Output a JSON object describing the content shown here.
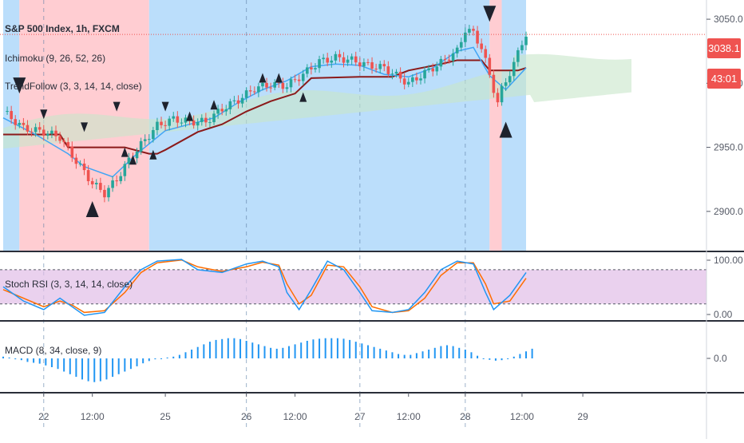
{
  "header": {
    "title": "S&P 500 Index, 1h, FXCM",
    "indicator_ichimoku": "Ichimoku (9, 26, 52, 26)",
    "indicator_trend": "TrendFollow (3, 3, 14, 14, close)",
    "indicator_stoch": "Stoch RSI (3, 3, 14, 14, close)",
    "indicator_macd": "MACD (8, 34, close, 9)"
  },
  "price_badge": {
    "price": "3038.1",
    "countdown": "43:01"
  },
  "colors": {
    "bull": "#26a69a",
    "bear": "#ef5350",
    "bg_bull": "#bbdefb",
    "bg_bear": "#ffcdd2",
    "conversion": "#42a5f5",
    "base": "#8b1a1a",
    "cloud": "#c8e6c9",
    "stoch_k": "#2196f3",
    "stoch_d": "#ff6d00",
    "stoch_band": "#e1bee7",
    "macd_hist": "#2196f3",
    "price_line": "#ef5350"
  },
  "chart_data": {
    "type": "candlestick",
    "symbol": "S&P 500 Index",
    "interval": "1h",
    "source": "FXCM",
    "x_ticks": [
      "22",
      "12:00",
      "25",
      "26",
      "12:00",
      "27",
      "12:00",
      "28",
      "12:00",
      "29"
    ],
    "y_ticks": [
      3050.0,
      3000.0,
      2950.0,
      2900.0
    ],
    "ylim": [
      2870,
      3065
    ],
    "last_price": 3038.1,
    "close_path": [
      [
        0,
        2978
      ],
      [
        5,
        2965
      ],
      [
        10,
        2962
      ],
      [
        14,
        2958
      ],
      [
        16,
        2948
      ],
      [
        19,
        2935
      ],
      [
        22,
        2922
      ],
      [
        25,
        2914
      ],
      [
        28,
        2925
      ],
      [
        31,
        2940
      ],
      [
        34,
        2952
      ],
      [
        38,
        2967
      ],
      [
        42,
        2972
      ],
      [
        46,
        2970
      ],
      [
        50,
        2970
      ],
      [
        54,
        2980
      ],
      [
        58,
        2987
      ],
      [
        62,
        2996
      ],
      [
        66,
        2999
      ],
      [
        70,
        2998
      ],
      [
        74,
        3007
      ],
      [
        78,
        3017
      ],
      [
        82,
        3020
      ],
      [
        86,
        3018
      ],
      [
        90,
        3014
      ],
      [
        94,
        3012
      ],
      [
        98,
        3004
      ],
      [
        100,
        3000
      ],
      [
        104,
        3008
      ],
      [
        108,
        3016
      ],
      [
        112,
        3025
      ],
      [
        114,
        3042
      ],
      [
        116,
        3039
      ],
      [
        118,
        3028
      ],
      [
        120,
        3006
      ],
      [
        122,
        2985
      ],
      [
        123,
        2995
      ],
      [
        126,
        3015
      ],
      [
        128,
        3032
      ],
      [
        129,
        3038.1
      ]
    ],
    "conversion_line": [
      [
        0,
        2973
      ],
      [
        8,
        2960
      ],
      [
        16,
        2945
      ],
      [
        20,
        2935
      ],
      [
        27,
        2927
      ],
      [
        33,
        2945
      ],
      [
        40,
        2963
      ],
      [
        46,
        2968
      ],
      [
        52,
        2973
      ],
      [
        58,
        2985
      ],
      [
        64,
        2995
      ],
      [
        70,
        3002
      ],
      [
        76,
        3013
      ],
      [
        82,
        3015
      ],
      [
        88,
        3014
      ],
      [
        94,
        3007
      ],
      [
        100,
        3005
      ],
      [
        106,
        3012
      ],
      [
        112,
        3025
      ],
      [
        116,
        3028
      ],
      [
        120,
        3006
      ],
      [
        124,
        2995
      ],
      [
        129,
        3012
      ]
    ],
    "base_line": [
      [
        0,
        2960
      ],
      [
        8,
        2960
      ],
      [
        14,
        2960
      ],
      [
        16,
        2950
      ],
      [
        24,
        2950
      ],
      [
        30,
        2950
      ],
      [
        36,
        2945
      ],
      [
        38,
        2945
      ],
      [
        40,
        2948
      ],
      [
        48,
        2962
      ],
      [
        54,
        2968
      ],
      [
        60,
        2978
      ],
      [
        66,
        2986
      ],
      [
        72,
        2992
      ],
      [
        76,
        3004
      ],
      [
        88,
        3005
      ],
      [
        96,
        3005
      ],
      [
        100,
        3010
      ],
      [
        108,
        3015
      ],
      [
        112,
        3018
      ],
      [
        118,
        3018
      ],
      [
        120,
        3010
      ],
      [
        127,
        3010
      ],
      [
        129,
        3012
      ]
    ],
    "bg_regions": [
      {
        "from": 0,
        "to": 4,
        "color": "bull"
      },
      {
        "from": 4,
        "to": 36,
        "color": "bear"
      },
      {
        "from": 36,
        "to": 120,
        "color": "bull"
      },
      {
        "from": 120,
        "to": 123,
        "color": "bear"
      },
      {
        "from": 123,
        "to": 129,
        "color": "bull"
      }
    ],
    "stoch_rsi": {
      "levels": [
        80,
        20
      ],
      "y_ticks": [
        100.0,
        0.0
      ],
      "k": [
        [
          0,
          50
        ],
        [
          5,
          25
        ],
        [
          10,
          10
        ],
        [
          14,
          30
        ],
        [
          17,
          15
        ],
        [
          20,
          0
        ],
        [
          25,
          5
        ],
        [
          30,
          50
        ],
        [
          34,
          80
        ],
        [
          38,
          95
        ],
        [
          44,
          98
        ],
        [
          48,
          80
        ],
        [
          54,
          75
        ],
        [
          60,
          90
        ],
        [
          64,
          95
        ],
        [
          68,
          85
        ],
        [
          70,
          40
        ],
        [
          73,
          10
        ],
        [
          76,
          45
        ],
        [
          80,
          95
        ],
        [
          84,
          80
        ],
        [
          88,
          40
        ],
        [
          91,
          8
        ],
        [
          96,
          5
        ],
        [
          100,
          10
        ],
        [
          104,
          40
        ],
        [
          108,
          80
        ],
        [
          112,
          95
        ],
        [
          116,
          90
        ],
        [
          119,
          40
        ],
        [
          121,
          10
        ],
        [
          125,
          35
        ],
        [
          129,
          75
        ]
      ],
      "d": [
        [
          0,
          45
        ],
        [
          5,
          30
        ],
        [
          10,
          15
        ],
        [
          14,
          25
        ],
        [
          17,
          18
        ],
        [
          20,
          5
        ],
        [
          25,
          8
        ],
        [
          30,
          40
        ],
        [
          34,
          75
        ],
        [
          38,
          92
        ],
        [
          44,
          97
        ],
        [
          48,
          85
        ],
        [
          54,
          77
        ],
        [
          60,
          85
        ],
        [
          64,
          93
        ],
        [
          68,
          88
        ],
        [
          70,
          55
        ],
        [
          73,
          20
        ],
        [
          76,
          35
        ],
        [
          80,
          88
        ],
        [
          84,
          85
        ],
        [
          88,
          50
        ],
        [
          91,
          15
        ],
        [
          96,
          5
        ],
        [
          100,
          8
        ],
        [
          104,
          30
        ],
        [
          108,
          70
        ],
        [
          112,
          92
        ],
        [
          116,
          92
        ],
        [
          119,
          55
        ],
        [
          121,
          20
        ],
        [
          125,
          25
        ],
        [
          129,
          65
        ]
      ]
    },
    "macd_hist": {
      "y_ticks": [
        0.0
      ],
      "values": [
        1.0,
        0.5,
        -0.5,
        -1.0,
        -2.0,
        -2.5,
        -3.0,
        -4.0,
        -5.0,
        -6.0,
        -7.5,
        -9.0,
        -10.5,
        -12.0,
        -13.0,
        -13.5,
        -13.0,
        -12.0,
        -10.5,
        -9.0,
        -7.5,
        -6.0,
        -4.5,
        -2.8,
        -1.5,
        -0.5,
        0.0,
        0.5,
        1.0,
        2.0,
        3.5,
        5.0,
        6.5,
        8.0,
        9.5,
        10.5,
        11.0,
        11.5,
        11.5,
        11.0,
        10.0,
        9.0,
        8.0,
        7.0,
        6.0,
        5.5,
        6.0,
        7.0,
        8.0,
        9.0,
        10.0,
        10.8,
        11.2,
        11.5,
        11.5,
        11.5,
        11.2,
        10.5,
        9.5,
        8.5,
        7.5,
        6.5,
        5.5,
        4.5,
        3.5,
        2.5,
        2.0,
        2.0,
        3.0,
        4.0,
        5.0,
        6.0,
        7.0,
        7.5,
        7.0,
        6.0,
        5.0,
        3.5,
        1.5,
        0.0,
        -0.8,
        -1.3,
        -1.0,
        0.0,
        1.0,
        2.5,
        4.0,
        5.5
      ]
    },
    "signals": [
      {
        "x": 4,
        "dir": "down",
        "size": "large",
        "price": 2992
      },
      {
        "x": 10,
        "dir": "down",
        "size": "small",
        "price": 2972
      },
      {
        "x": 20,
        "dir": "down",
        "size": "small",
        "price": 2962
      },
      {
        "x": 28,
        "dir": "down",
        "size": "small",
        "price": 2978
      },
      {
        "x": 40,
        "dir": "down",
        "size": "small",
        "price": 2978
      },
      {
        "x": 22,
        "dir": "up",
        "size": "large",
        "price": 2908
      },
      {
        "x": 30,
        "dir": "up",
        "size": "small",
        "price": 2950
      },
      {
        "x": 32,
        "dir": "up",
        "size": "small",
        "price": 2944
      },
      {
        "x": 37,
        "dir": "up",
        "size": "small",
        "price": 2948
      },
      {
        "x": 46,
        "dir": "up",
        "size": "small",
        "price": 2978
      },
      {
        "x": 52,
        "dir": "up",
        "size": "small",
        "price": 2987
      },
      {
        "x": 64,
        "dir": "up",
        "size": "small",
        "price": 3008
      },
      {
        "x": 68,
        "dir": "up",
        "size": "small",
        "price": 3008
      },
      {
        "x": 74,
        "dir": "up",
        "size": "small",
        "price": 2993
      },
      {
        "x": 124,
        "dir": "up",
        "size": "large",
        "price": 2970
      },
      {
        "x": 120,
        "dir": "down",
        "size": "large",
        "price": 3048
      }
    ]
  }
}
